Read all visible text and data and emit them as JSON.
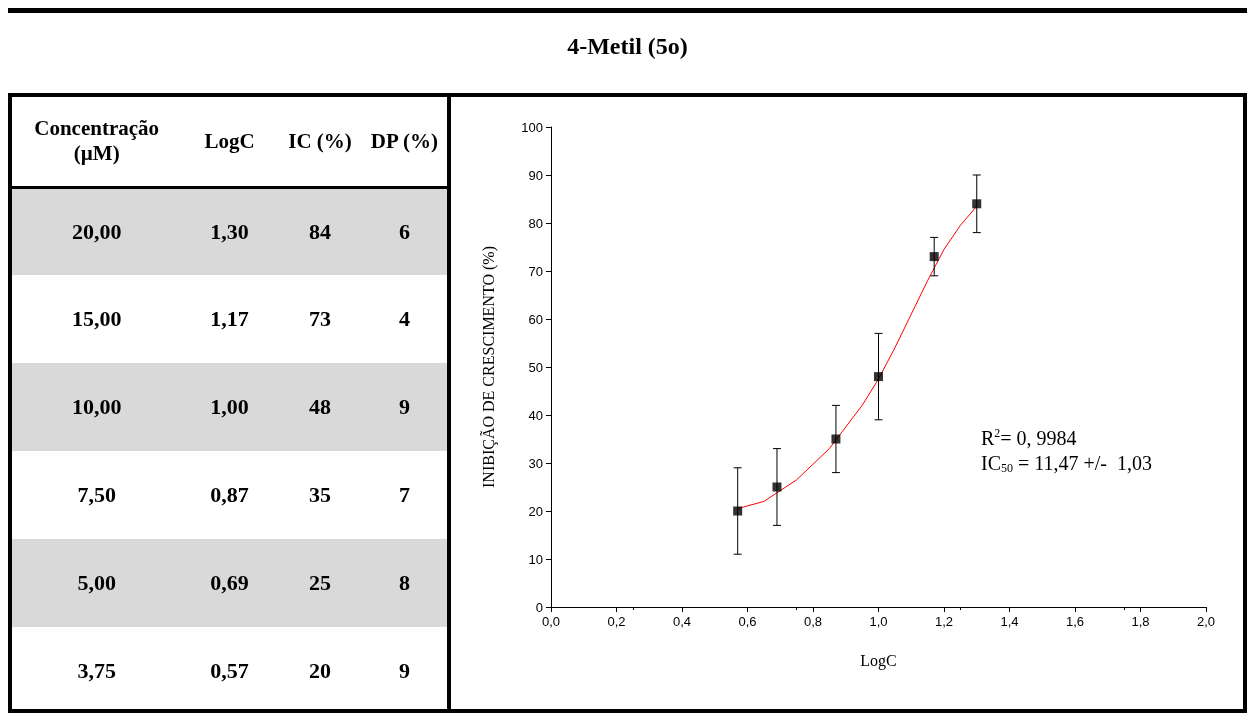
{
  "chart_data": [
    {
      "type": "other",
      "annotations": [
        "Concentração (µM)",
        "LogC",
        "IC (%)",
        "DP (%)",
        "20,00",
        "1,30",
        "84",
        "6",
        "15,00",
        "1,17",
        "73",
        "4",
        "10,00",
        "1,00",
        "48",
        "9",
        "7,50",
        "0,87",
        "35",
        "7",
        "5,00",
        "0,69",
        "25",
        "8",
        "3,75",
        "0,57",
        "20",
        "9"
      ]
    },
    {
      "type": "scatter",
      "title": "4-Metil (5o)",
      "xlabel": "LogC",
      "ylabel": "INIBIÇÃO DE CRESCIMENTO (%)",
      "xlim": [
        0,
        2
      ],
      "xticks": [
        {
          "value": 0,
          "label": "0,0"
        },
        {
          "value": 0.2,
          "label": "0,2"
        },
        {
          "value": 0.4,
          "label": "0,4"
        },
        {
          "value": 0.6,
          "label": "0,6"
        },
        {
          "value": 0.8,
          "label": "0,8"
        },
        {
          "value": 1,
          "label": "1,0"
        },
        {
          "value": 1.2,
          "label": "1,2"
        },
        {
          "value": 1.4,
          "label": "1,4"
        },
        {
          "value": 1.6,
          "label": "1,6"
        },
        {
          "value": 1.8,
          "label": "1,8"
        },
        {
          "value": 2,
          "label": "2,0"
        }
      ],
      "ylim": [
        0,
        100
      ],
      "yticks": [
        0,
        10,
        20,
        30,
        40,
        50,
        60,
        70,
        80,
        90,
        100
      ],
      "grid": false,
      "series": [
        {
          "type": "scatter",
          "marker": "square",
          "color": "#000000",
          "x": [
            0.57,
            0.69,
            0.87,
            1.0,
            1.17,
            1.3
          ],
          "values": [
            20,
            25,
            35,
            48,
            73,
            84
          ],
          "errors": [
            9,
            8,
            7,
            9,
            4,
            6
          ]
        },
        {
          "type": "line",
          "color": "#ff0000",
          "x": [
            0.57,
            0.65,
            0.75,
            0.85,
            0.95,
            1.0,
            1.05,
            1.1,
            1.15,
            1.2,
            1.25,
            1.3
          ],
          "values": [
            20.5,
            22,
            26.5,
            33,
            42,
            47.5,
            54,
            61,
            68,
            74.5,
            79.5,
            83.5
          ]
        }
      ],
      "annotations": [
        "R$^{2}$= 0, 9984",
        "IC$_{50}$ = 11,47 +/-  1,03"
      ]
    }
  ]
}
